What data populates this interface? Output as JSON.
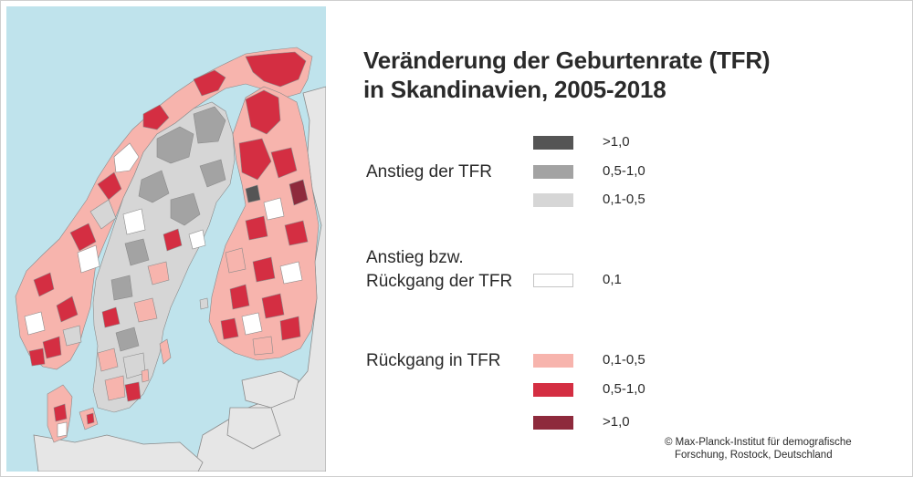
{
  "title": {
    "line1": "Veränderung der Geburtenrate (TFR)",
    "line2": "in Skandinavien, 2005-2018"
  },
  "legend": {
    "increase": {
      "label": "Anstieg der TFR",
      "items": [
        {
          "range": ">1,0",
          "color": "#555555"
        },
        {
          "range": "0,5-1,0",
          "color": "#a3a3a3"
        },
        {
          "range": "0,1-0,5",
          "color": "#d6d6d6"
        }
      ]
    },
    "neutral": {
      "label_line1": "Anstieg bzw.",
      "label_line2": "Rückgang der TFR",
      "items": [
        {
          "range": "0,1",
          "color": "#ffffff"
        }
      ]
    },
    "decrease": {
      "label": "Rückgang in TFR",
      "items": [
        {
          "range": "0,1-0,5",
          "color": "#f7b4ad"
        },
        {
          "range": "0,5-1,0",
          "color": "#d42e42"
        },
        {
          "range": ">1,0",
          "color": "#8e2a3c"
        }
      ]
    }
  },
  "credit": {
    "line1": "© Max-Planck-Institut für demografische",
    "line2": "Forschung, Rostock, Deutschland"
  },
  "colors": {
    "sea": "#bfe3ec",
    "land_other": "#e6e6e6",
    "border": "#8a8a8a"
  }
}
